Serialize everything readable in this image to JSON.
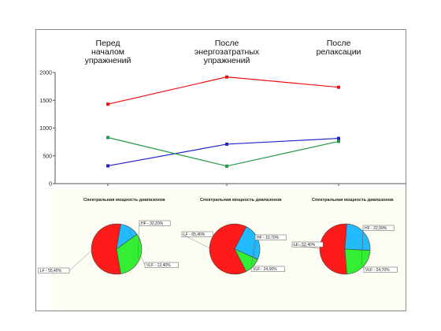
{
  "chart_data": [
    {
      "type": "line",
      "title": "",
      "xlabel": "",
      "ylabel": "",
      "categories": [
        "Перед началом упражнений",
        "После энергозатратных упражнений",
        "После релаксации"
      ],
      "category_lines": [
        [
          "Перед",
          "началом",
          "упражнений"
        ],
        [
          "После",
          "энергозатратных",
          "упражнений"
        ],
        [
          "После",
          "релаксации"
        ]
      ],
      "ylim": [
        0,
        2000
      ],
      "yticks": [
        0,
        500,
        1000,
        1500,
        2000
      ],
      "grid": false,
      "legend": "none",
      "series": [
        {
          "color": "#ee1111",
          "values": [
            1430,
            1920,
            1735
          ]
        },
        {
          "color": "#2222cc",
          "values": [
            320,
            710,
            815
          ]
        },
        {
          "color": "#229944",
          "values": [
            830,
            315,
            760
          ]
        }
      ]
    },
    {
      "type": "pie",
      "title": "Спектральная мощность диапазонов",
      "slices": [
        {
          "label": "LF - 55,40%",
          "value": 55.4,
          "color": "#ff1a1a"
        },
        {
          "label": "VLF - 12,40%",
          "value": 12.4,
          "color": "#22bbff"
        },
        {
          "label": "HF - 32,20%",
          "value": 32.2,
          "color": "#33ee33"
        }
      ]
    },
    {
      "type": "pie",
      "title": "Спектральная мощность диапазонов",
      "slices": [
        {
          "label": "LF - 65,40%",
          "value": 65.4,
          "color": "#ff1a1a"
        },
        {
          "label": "VLF - 24,00%",
          "value": 24.0,
          "color": "#22bbff"
        },
        {
          "label": "HF - 10,70%",
          "value": 10.7,
          "color": "#33ee33"
        }
      ]
    },
    {
      "type": "pie",
      "title": "Спектральная мощность диапазонов",
      "slices": [
        {
          "label": "LF - 52,40%",
          "value": 52.4,
          "color": "#ff1a1a"
        },
        {
          "label": "VLF - 24,70%",
          "value": 24.7,
          "color": "#22bbff"
        },
        {
          "label": "HF - 22,90%",
          "value": 22.9,
          "color": "#33ee33"
        }
      ]
    }
  ]
}
